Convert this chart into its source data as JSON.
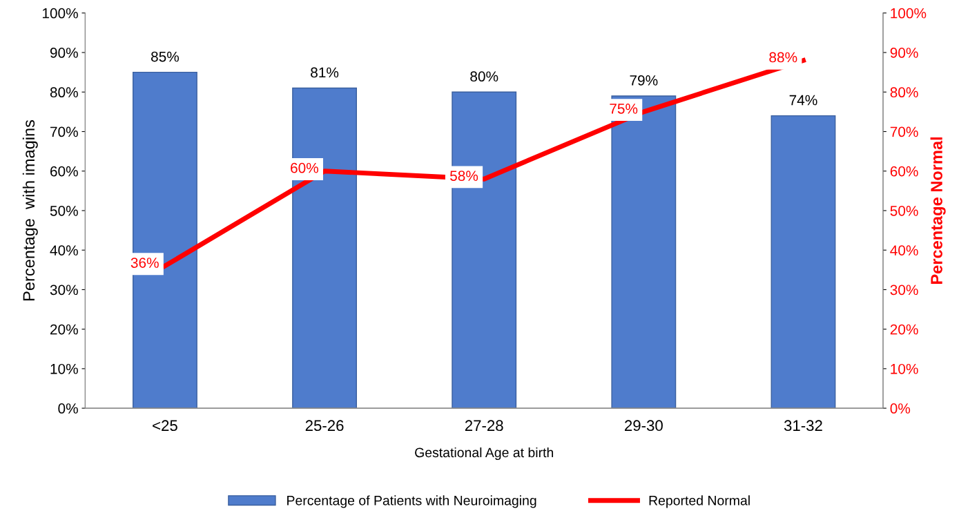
{
  "chart_data": {
    "type": "bar",
    "categories": [
      "<25",
      "25-26",
      "27-28",
      "29-30",
      "31-32"
    ],
    "xlabel": "Gestational Age at birth",
    "ylabel": "Percentage  with imagins",
    "y2label": "Percentage Normal",
    "series": [
      {
        "name": "Percentage of Patients with Neuroimaging",
        "color": "#4f7ccc",
        "values": [
          85,
          81,
          80,
          79,
          74
        ],
        "value_labels": [
          "85%",
          "81%",
          "80%",
          "79%",
          "74%"
        ]
      },
      {
        "name": "Reported Normal",
        "type": "line",
        "axis": "y2",
        "color": "#ff0000",
        "values": [
          36,
          60,
          58,
          75,
          88
        ],
        "value_labels": [
          "36%",
          "60%",
          "58%",
          "75%",
          "88%"
        ]
      }
    ],
    "ylim": [
      0,
      100
    ],
    "yticks": [
      {
        "value": 0,
        "label": "0%"
      },
      {
        "value": 10,
        "label": "10%"
      },
      {
        "value": 20,
        "label": "20%"
      },
      {
        "value": 30,
        "label": "30%"
      },
      {
        "value": 40,
        "label": "40%"
      },
      {
        "value": 50,
        "label": "50%"
      },
      {
        "value": 60,
        "label": "60%"
      },
      {
        "value": 70,
        "label": "70%"
      },
      {
        "value": 80,
        "label": "80%"
      },
      {
        "value": 90,
        "label": "90%"
      },
      {
        "value": 100,
        "label": "100%"
      }
    ],
    "y2lim": [
      0,
      100
    ],
    "y2ticks": [
      {
        "value": 0,
        "label": "0%"
      },
      {
        "value": 10,
        "label": "10%"
      },
      {
        "value": 20,
        "label": "20%"
      },
      {
        "value": 30,
        "label": "30%"
      },
      {
        "value": 40,
        "label": "40%"
      },
      {
        "value": 50,
        "label": "50%"
      },
      {
        "value": 60,
        "label": "60%"
      },
      {
        "value": 70,
        "label": "70%"
      },
      {
        "value": 80,
        "label": "80%"
      },
      {
        "value": 90,
        "label": "90%"
      },
      {
        "value": 100,
        "label": "100%"
      }
    ],
    "grid": false,
    "legend": "bottom",
    "marker": "none",
    "line_style": "solid"
  }
}
